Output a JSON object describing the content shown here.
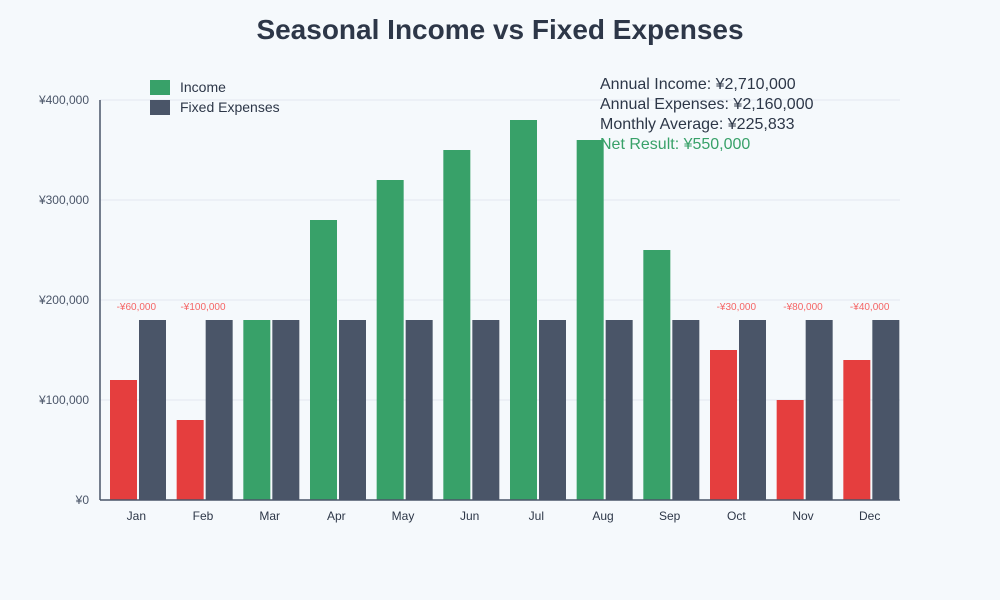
{
  "chart_data": {
    "type": "bar",
    "title": "Seasonal Income vs Fixed Expenses",
    "categories": [
      "Jan",
      "Feb",
      "Mar",
      "Apr",
      "May",
      "Jun",
      "Jul",
      "Aug",
      "Sep",
      "Oct",
      "Nov",
      "Dec"
    ],
    "series": [
      {
        "name": "Income",
        "values": [
          120000,
          80000,
          180000,
          280000,
          320000,
          350000,
          380000,
          360000,
          250000,
          150000,
          100000,
          140000
        ],
        "color": "#38a169",
        "deficit_color": "#e53e3e"
      },
      {
        "name": "Fixed Expenses",
        "values": [
          180000,
          180000,
          180000,
          180000,
          180000,
          180000,
          180000,
          180000,
          180000,
          180000,
          180000,
          180000
        ],
        "color": "#4a5568"
      }
    ],
    "deficit_labels": [
      "-¥60,000",
      "-¥100,000",
      null,
      null,
      null,
      null,
      null,
      null,
      null,
      "-¥30,000",
      "-¥80,000",
      "-¥40,000"
    ],
    "yticks": [
      "¥0",
      "¥100,000",
      "¥200,000",
      "¥300,000",
      "¥400,000"
    ],
    "ylim": [
      0,
      400000
    ],
    "grid": true,
    "legend": "top-left",
    "xlabel": "",
    "ylabel": ""
  },
  "stats": {
    "annual_income": "Annual Income: ¥2,710,000",
    "annual_expenses": "Annual Expenses: ¥2,160,000",
    "monthly_average": "Monthly Average: ¥225,833",
    "net_result": "Net Result: ¥550,000",
    "net_color": "#38a169"
  }
}
